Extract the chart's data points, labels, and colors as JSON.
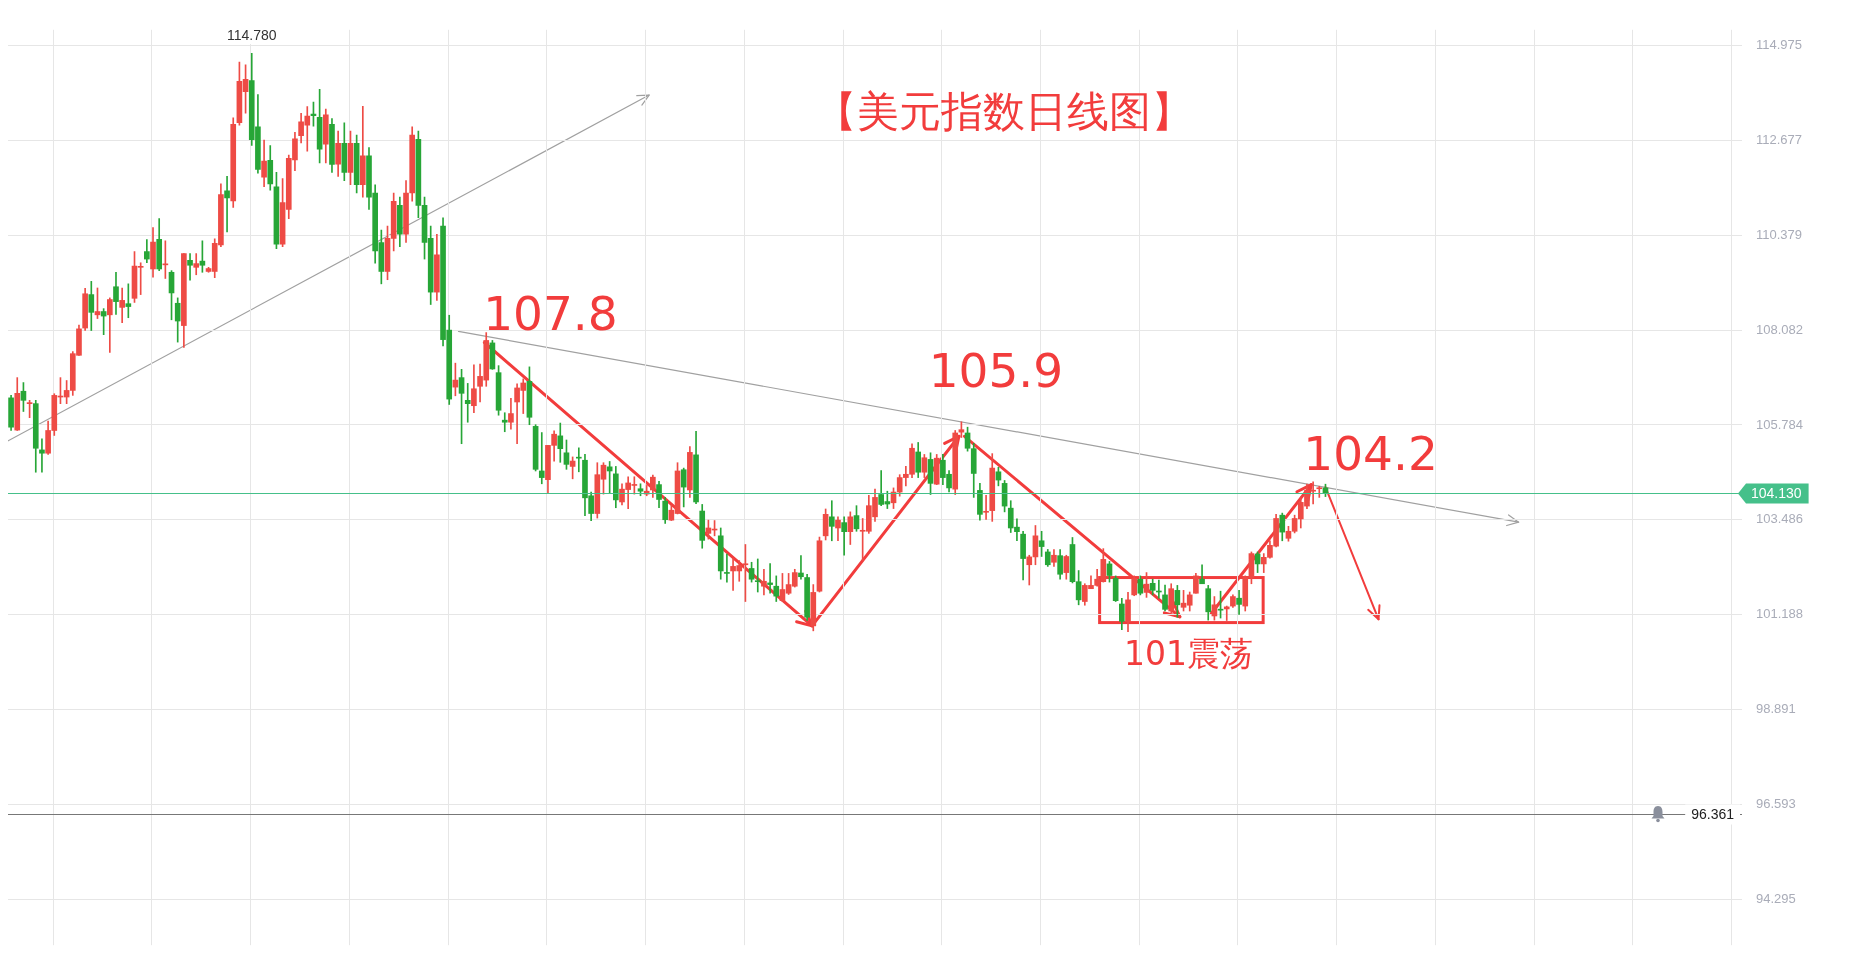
{
  "chart_data": {
    "type": "candlestick",
    "title": "【美元指数日线图】",
    "categories": [
      null,
      null,
      null,
      null,
      null,
      null,
      null,
      null,
      null,
      null,
      null,
      null,
      null,
      null,
      null,
      null,
      null,
      null,
      null,
      null,
      null,
      null,
      null,
      null,
      null,
      null,
      null,
      null,
      null,
      null,
      null,
      null,
      null,
      null,
      null,
      null,
      null,
      null,
      null,
      null,
      null,
      null,
      null,
      null,
      null,
      null,
      null,
      null,
      null,
      null,
      null,
      null,
      null,
      null,
      null,
      null,
      null,
      null,
      null,
      null,
      null,
      null,
      null,
      null,
      null,
      null,
      null,
      null,
      null,
      null,
      null,
      null,
      null,
      null,
      null,
      null,
      null,
      null,
      null,
      null,
      null,
      null,
      null,
      null,
      null,
      null,
      null,
      null,
      null,
      null,
      null,
      null,
      null,
      null,
      null,
      null,
      null,
      null,
      null,
      null,
      null,
      null,
      null,
      null,
      null,
      null,
      null,
      null,
      null,
      null,
      null,
      null,
      null,
      null,
      null,
      null,
      null,
      null,
      null,
      null,
      null,
      null,
      null,
      null,
      null,
      null,
      null,
      null,
      null,
      null,
      null,
      null,
      null,
      null,
      null,
      null,
      null,
      null,
      null,
      null,
      null,
      null,
      null,
      null,
      null,
      null,
      null,
      null,
      null,
      null,
      null,
      null,
      null,
      null,
      null,
      null,
      null,
      null,
      null,
      null,
      null,
      null,
      null,
      null,
      null,
      null,
      null,
      null,
      null,
      null,
      null,
      null,
      null,
      null,
      null,
      null,
      null,
      null,
      null,
      null,
      null,
      null,
      null,
      null,
      null,
      null,
      null,
      null,
      null,
      null,
      null,
      null,
      null,
      null,
      null,
      null,
      null,
      null,
      null,
      null,
      null,
      null,
      null,
      null,
      null,
      null,
      null,
      null,
      null,
      null,
      null,
      null,
      null,
      null,
      null,
      null,
      null,
      null,
      null,
      null,
      null,
      null,
      null,
      null,
      null,
      null,
      null,
      null,
      null,
      null,
      null,
      null,
      null,
      null,
      null,
      null,
      null,
      null,
      null,
      null,
      null,
      null,
      null,
      null,
      null,
      null,
      null,
      null,
      null,
      null,
      null,
      null,
      null,
      null,
      null,
      null,
      null,
      null,
      null,
      null,
      null,
      null,
      null,
      null,
      null,
      null,
      null,
      null,
      null,
      null,
      null,
      null,
      null,
      null,
      null,
      null,
      null,
      null,
      null,
      null,
      null
    ],
    "ohlc": [
      [
        106.44,
        106.5,
        105.65,
        105.73
      ],
      [
        105.66,
        106.93,
        105.65,
        106.55
      ],
      [
        106.6,
        106.81,
        106.11,
        106.38
      ],
      [
        106.3,
        106.38,
        105.96,
        106.3
      ],
      [
        106.3,
        106.38,
        104.64,
        105.22
      ],
      [
        105.18,
        105.45,
        104.64,
        105.1
      ],
      [
        105.1,
        105.88,
        105.07,
        105.65
      ],
      [
        105.65,
        106.54,
        105.53,
        106.5
      ],
      [
        106.46,
        106.93,
        106.3,
        106.46
      ],
      [
        106.46,
        106.86,
        106.3,
        106.62
      ],
      [
        106.62,
        107.56,
        106.5,
        107.51
      ],
      [
        107.47,
        108.2,
        107.47,
        108.11
      ],
      [
        108.13,
        109.09,
        108.07,
        108.96
      ],
      [
        108.94,
        109.26,
        108.07,
        108.51
      ],
      [
        108.45,
        109.1,
        108.36,
        108.53
      ],
      [
        108.53,
        108.6,
        107.97,
        108.42
      ],
      [
        108.45,
        108.86,
        107.54,
        108.82
      ],
      [
        109.13,
        109.48,
        108.46,
        108.77
      ],
      [
        108.63,
        109.1,
        108.26,
        108.8
      ],
      [
        108.72,
        109.2,
        108.38,
        108.65
      ],
      [
        108.85,
        109.98,
        108.75,
        109.63
      ],
      [
        109.6,
        109.71,
        108.94,
        109.6
      ],
      [
        109.98,
        110.27,
        109.71,
        109.8
      ],
      [
        109.56,
        110.56,
        109.36,
        110.21
      ],
      [
        110.28,
        110.78,
        109.52,
        109.56
      ],
      [
        109.66,
        110.24,
        109.33,
        109.66
      ],
      [
        109.48,
        109.52,
        108.33,
        108.98
      ],
      [
        108.73,
        108.86,
        107.79,
        108.3
      ],
      [
        108.19,
        109.93,
        107.66,
        109.93
      ],
      [
        109.77,
        109.93,
        109.29,
        109.65
      ],
      [
        109.6,
        109.93,
        109.42,
        109.69
      ],
      [
        109.75,
        110.24,
        109.48,
        109.65
      ],
      [
        109.5,
        109.6,
        109.48,
        109.57
      ],
      [
        109.5,
        110.29,
        109.35,
        110.18
      ],
      [
        110.14,
        111.62,
        110.1,
        111.36
      ],
      [
        111.45,
        111.8,
        110.46,
        111.28
      ],
      [
        111.21,
        113.22,
        111.05,
        113.06
      ],
      [
        113.1,
        114.57,
        113.04,
        114.1
      ],
      [
        113.85,
        114.5,
        113.33,
        114.15
      ],
      [
        114.12,
        114.78,
        112.55,
        112.69
      ],
      [
        113.0,
        113.78,
        111.88,
        111.97
      ],
      [
        111.78,
        112.68,
        111.55,
        112.17
      ],
      [
        112.19,
        112.55,
        111.47,
        111.62
      ],
      [
        111.55,
        111.9,
        110.05,
        110.16
      ],
      [
        110.16,
        111.75,
        110.1,
        111.17
      ],
      [
        111.0,
        112.32,
        110.78,
        112.24
      ],
      [
        112.2,
        112.87,
        111.94,
        112.71
      ],
      [
        112.79,
        113.33,
        112.61,
        113.12
      ],
      [
        113.04,
        113.49,
        112.41,
        113.26
      ],
      [
        113.31,
        113.6,
        113.02,
        113.27
      ],
      [
        113.23,
        113.91,
        112.13,
        112.46
      ],
      [
        112.58,
        113.43,
        112.13,
        113.29
      ],
      [
        113.06,
        113.2,
        111.9,
        112.09
      ],
      [
        112.1,
        112.9,
        111.8,
        112.6
      ],
      [
        112.6,
        113.1,
        111.7,
        111.9
      ],
      [
        111.9,
        112.9,
        111.6,
        112.6
      ],
      [
        112.6,
        112.8,
        111.4,
        111.6
      ],
      [
        111.6,
        113.5,
        111.3,
        112.3
      ],
      [
        112.3,
        112.5,
        111.0,
        111.3
      ],
      [
        111.4,
        111.6,
        109.7,
        110.0
      ],
      [
        110.2,
        110.5,
        109.2,
        109.5
      ],
      [
        109.5,
        110.6,
        109.3,
        110.3
      ],
      [
        110.3,
        111.4,
        110.0,
        111.2
      ],
      [
        111.1,
        111.3,
        110.1,
        110.4
      ],
      [
        110.4,
        111.7,
        110.2,
        111.4
      ],
      [
        111.4,
        113.0,
        111.2,
        112.8
      ],
      [
        112.7,
        112.9,
        110.8,
        111.1
      ],
      [
        111.1,
        111.3,
        109.8,
        110.2
      ],
      [
        110.3,
        110.6,
        108.7,
        109.0
      ],
      [
        109.0,
        110.4,
        108.8,
        109.9
      ],
      [
        110.6,
        110.8,
        107.7,
        107.85
      ],
      [
        108.08,
        108.44,
        106.28,
        106.41
      ],
      [
        106.7,
        107.28,
        106.49,
        106.87
      ],
      [
        106.93,
        107.13,
        105.33,
        106.55
      ],
      [
        106.38,
        106.79,
        105.85,
        106.3
      ],
      [
        106.25,
        107.24,
        106.08,
        106.66
      ],
      [
        106.72,
        107.26,
        106.34,
        106.96
      ],
      [
        106.87,
        108.02,
        106.72,
        107.83
      ],
      [
        107.77,
        107.83,
        107.13,
        107.14
      ],
      [
        107.05,
        107.22,
        106.02,
        106.14
      ],
      [
        105.9,
        106.08,
        105.62,
        105.85
      ],
      [
        105.85,
        106.43,
        105.68,
        106.06
      ],
      [
        106.34,
        106.78,
        105.33,
        106.68
      ],
      [
        106.62,
        106.9,
        106.06,
        106.8
      ],
      [
        106.84,
        107.19,
        105.79,
        105.97
      ],
      [
        105.75,
        105.79,
        104.67,
        104.71
      ],
      [
        104.67,
        105.6,
        104.36,
        104.51
      ],
      [
        104.46,
        105.29,
        104.13,
        105.29
      ],
      [
        105.29,
        105.64,
        104.91,
        105.56
      ],
      [
        105.52,
        105.83,
        104.88,
        105.21
      ],
      [
        105.11,
        105.42,
        104.71,
        104.83
      ],
      [
        104.78,
        105.01,
        104.48,
        104.91
      ],
      [
        105.0,
        105.23,
        104.65,
        104.98
      ],
      [
        104.93,
        105.07,
        103.59,
        104.02
      ],
      [
        104.07,
        104.16,
        103.47,
        103.64
      ],
      [
        103.64,
        104.87,
        103.53,
        104.58
      ],
      [
        104.47,
        104.87,
        104.11,
        104.81
      ],
      [
        104.77,
        104.9,
        104.13,
        104.67
      ],
      [
        104.6,
        104.78,
        103.78,
        103.97
      ],
      [
        103.92,
        104.36,
        103.85,
        104.23
      ],
      [
        104.22,
        104.53,
        103.76,
        104.38
      ],
      [
        104.32,
        104.53,
        104.11,
        104.32
      ],
      [
        104.24,
        104.36,
        104.07,
        104.18
      ],
      [
        104.11,
        104.32,
        104.07,
        104.18
      ],
      [
        104.21,
        104.57,
        104.03,
        104.52
      ],
      [
        104.34,
        104.42,
        103.78,
        103.98
      ],
      [
        103.94,
        104.03,
        103.4,
        103.49
      ],
      [
        103.48,
        103.85,
        103.47,
        103.72
      ],
      [
        103.64,
        104.87,
        103.63,
        104.67
      ],
      [
        104.7,
        104.74,
        103.8,
        104.28
      ],
      [
        104.21,
        105.26,
        104.03,
        105.12
      ],
      [
        105.06,
        105.63,
        103.88,
        103.92
      ],
      [
        103.7,
        103.86,
        102.8,
        102.99
      ],
      [
        103.16,
        103.48,
        103.02,
        103.29
      ],
      [
        103.24,
        103.47,
        103.1,
        103.24
      ],
      [
        103.1,
        103.29,
        102.05,
        102.25
      ],
      [
        102.2,
        102.66,
        101.98,
        102.19
      ],
      [
        102.25,
        102.56,
        101.78,
        102.36
      ],
      [
        102.25,
        102.5,
        102.0,
        102.38
      ],
      [
        102.4,
        102.89,
        101.51,
        102.4
      ],
      [
        102.31,
        102.46,
        101.98,
        102.05
      ],
      [
        102.01,
        102.54,
        101.74,
        101.99
      ],
      [
        101.88,
        102.29,
        101.67,
        102.0
      ],
      [
        101.96,
        102.43,
        101.71,
        101.92
      ],
      [
        101.88,
        102.13,
        101.51,
        101.64
      ],
      [
        101.53,
        102.19,
        101.51,
        101.8
      ],
      [
        101.71,
        102.19,
        101.68,
        101.92
      ],
      [
        101.88,
        102.29,
        101.86,
        102.21
      ],
      [
        102.2,
        102.62,
        102.05,
        102.11
      ],
      [
        102.09,
        102.17,
        101.05,
        101.13
      ],
      [
        100.92,
        101.92,
        100.8,
        101.73
      ],
      [
        101.76,
        103.07,
        101.74,
        102.98
      ],
      [
        103.1,
        103.75,
        103.0,
        103.62
      ],
      [
        103.56,
        103.95,
        102.98,
        103.33
      ],
      [
        103.29,
        103.56,
        102.98,
        103.48
      ],
      [
        103.42,
        103.56,
        102.63,
        103.2
      ],
      [
        103.2,
        103.68,
        102.89,
        103.56
      ],
      [
        103.59,
        103.83,
        103.21,
        103.27
      ],
      [
        103.21,
        103.52,
        102.5,
        103.23
      ],
      [
        103.21,
        104.08,
        103.16,
        103.83
      ],
      [
        103.56,
        104.23,
        103.45,
        104.03
      ],
      [
        104.1,
        104.68,
        103.83,
        103.86
      ],
      [
        103.93,
        104.18,
        103.76,
        103.87
      ],
      [
        103.9,
        104.26,
        103.76,
        104.16
      ],
      [
        104.16,
        104.58,
        104.06,
        104.51
      ],
      [
        104.51,
        104.78,
        104.31,
        104.59
      ],
      [
        104.59,
        105.33,
        104.51,
        105.22
      ],
      [
        105.13,
        105.36,
        104.51,
        104.64
      ],
      [
        104.64,
        105.07,
        104.51,
        104.99
      ],
      [
        104.95,
        105.11,
        104.1,
        104.37
      ],
      [
        104.35,
        105.07,
        104.34,
        104.98
      ],
      [
        104.93,
        105.07,
        104.34,
        104.51
      ],
      [
        104.59,
        104.68,
        104.16,
        104.26
      ],
      [
        104.23,
        105.65,
        104.1,
        105.59
      ],
      [
        105.61,
        105.86,
        105.48,
        105.67
      ],
      [
        105.59,
        105.73,
        105.15,
        105.22
      ],
      [
        105.21,
        105.34,
        104.03,
        104.61
      ],
      [
        104.2,
        104.37,
        103.48,
        103.62
      ],
      [
        103.67,
        104.08,
        103.5,
        103.67
      ],
      [
        103.71,
        105.09,
        103.45,
        104.74
      ],
      [
        104.65,
        104.76,
        104.31,
        104.45
      ],
      [
        104.37,
        104.44,
        103.68,
        103.82
      ],
      [
        103.77,
        103.95,
        103.18,
        103.29
      ],
      [
        103.31,
        103.51,
        102.98,
        103.2
      ],
      [
        103.14,
        103.21,
        102.03,
        102.55
      ],
      [
        102.4,
        102.63,
        101.91,
        102.59
      ],
      [
        102.59,
        103.35,
        102.4,
        103.1
      ],
      [
        102.98,
        103.21,
        102.6,
        102.84
      ],
      [
        102.71,
        102.77,
        102.36,
        102.4
      ],
      [
        102.46,
        102.77,
        102.36,
        102.63
      ],
      [
        102.62,
        102.77,
        102.05,
        102.17
      ],
      [
        102.21,
        102.63,
        102.05,
        102.6
      ],
      [
        102.89,
        103.06,
        101.96,
        101.99
      ],
      [
        101.99,
        102.26,
        101.43,
        101.55
      ],
      [
        101.51,
        101.94,
        101.42,
        101.9
      ],
      [
        101.82,
        102.13,
        101.82,
        101.9
      ],
      [
        101.9,
        102.29,
        101.88,
        102.05
      ],
      [
        101.99,
        102.79,
        101.98,
        102.53
      ],
      [
        102.42,
        102.48,
        101.98,
        102.14
      ],
      [
        102.07,
        102.13,
        101.51,
        101.53
      ],
      [
        101.45,
        101.59,
        100.83,
        101.03
      ],
      [
        101.03,
        101.73,
        100.78,
        101.55
      ],
      [
        101.67,
        102.13,
        101.65,
        102.07
      ],
      [
        102.05,
        102.13,
        101.67,
        101.71
      ],
      [
        101.73,
        102.21,
        101.61,
        101.93
      ],
      [
        101.95,
        102.05,
        101.67,
        101.78
      ],
      [
        101.75,
        102.03,
        101.59,
        101.74
      ],
      [
        101.67,
        101.91,
        101.28,
        101.32
      ],
      [
        101.28,
        101.94,
        101.24,
        101.82
      ],
      [
        101.78,
        101.9,
        101.13,
        101.43
      ],
      [
        101.37,
        101.78,
        101.28,
        101.47
      ],
      [
        101.42,
        101.74,
        101.28,
        101.67
      ],
      [
        101.71,
        102.19,
        101.71,
        102.13
      ],
      [
        102.05,
        102.4,
        101.94,
        101.94
      ],
      [
        101.82,
        101.9,
        101.06,
        101.26
      ],
      [
        101.16,
        101.63,
        101.06,
        101.43
      ],
      [
        101.31,
        101.76,
        101.11,
        101.3
      ],
      [
        101.33,
        101.4,
        101.05,
        101.38
      ],
      [
        101.4,
        101.67,
        101.37,
        101.63
      ],
      [
        101.59,
        101.78,
        101.2,
        101.44
      ],
      [
        101.4,
        102.13,
        101.28,
        102.09
      ],
      [
        102.09,
        102.71,
        101.94,
        102.67
      ],
      [
        102.66,
        102.71,
        102.21,
        102.42
      ],
      [
        102.42,
        102.67,
        102.21,
        102.58
      ],
      [
        102.58,
        102.98,
        102.56,
        102.87
      ],
      [
        102.85,
        103.62,
        102.83,
        103.52
      ],
      [
        103.6,
        103.65,
        102.98,
        103.19
      ],
      [
        103.04,
        103.33,
        102.97,
        103.21
      ],
      [
        103.21,
        103.6,
        103.17,
        103.52
      ],
      [
        103.51,
        104.04,
        103.29,
        103.91
      ],
      [
        103.82,
        104.35,
        103.76,
        104.2
      ],
      [
        104.18,
        104.41,
        103.87,
        104.2
      ],
      [
        104.24,
        104.3,
        104.03,
        104.25
      ],
      [
        104.26,
        104.35,
        104.05,
        104.13
      ],
      null,
      null,
      null,
      null,
      null,
      null,
      null,
      null,
      null,
      null,
      null,
      null,
      null,
      null,
      null,
      null,
      null,
      null,
      null,
      null,
      null,
      null,
      null,
      null,
      null,
      null,
      null,
      null,
      null,
      null,
      null,
      null,
      null,
      null,
      null,
      null,
      null,
      null,
      null,
      null,
      null,
      null,
      null,
      null,
      null,
      null,
      null,
      null,
      null,
      null,
      null,
      null,
      null,
      null,
      null,
      null,
      null,
      null,
      null,
      null,
      null,
      null,
      null,
      null,
      null,
      null,
      null
    ],
    "ylim": [
      93.19,
      115.35
    ],
    "yticks": [
      114.975,
      112.677,
      110.379,
      108.082,
      105.784,
      103.486,
      101.188,
      98.891,
      96.593,
      94.295
    ],
    "ref_lines": [
      {
        "axis": "y",
        "value": 104.13,
        "label": "104.130",
        "color": "#45c08a"
      },
      {
        "axis": "y",
        "value": 96.361,
        "label": "96.361",
        "color": "#777777"
      }
    ],
    "annotations": [
      {
        "text": "114.780",
        "y": 114.78
      },
      "107.8",
      "105.9",
      "104.2",
      "101震荡"
    ],
    "grid": true,
    "legend": false,
    "tick_labels": "y"
  }
}
